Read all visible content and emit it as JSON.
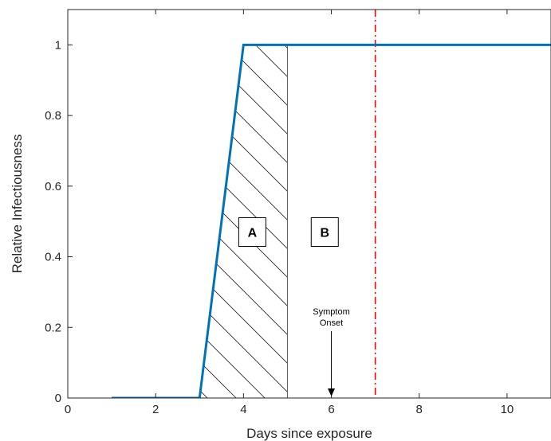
{
  "chart_data": {
    "type": "line",
    "title": "",
    "xlabel": "Days since exposure",
    "ylabel": "Relative Infectiousness",
    "xlim": [
      0,
      11
    ],
    "ylim": [
      0,
      1.1
    ],
    "xticks": [
      0,
      2,
      4,
      6,
      8,
      10
    ],
    "yticks": [
      0,
      0.2,
      0.4,
      0.6,
      0.8,
      1
    ],
    "grid": false,
    "series": [
      {
        "color": "#0072bd",
        "x": [
          1,
          3,
          4,
          11
        ],
        "y": [
          0,
          0,
          1,
          1
        ]
      }
    ],
    "vertical_lines": [
      {
        "x": 5,
        "style": "solid",
        "color": "#555555"
      },
      {
        "x": 7,
        "style": "dash-dot",
        "color": "#ff0000"
      }
    ],
    "hatched_region": {
      "label": "A",
      "x_from": 3,
      "x_to": 5
    },
    "region_labels": [
      {
        "text": "A",
        "x": 4.2,
        "y": 0.47
      },
      {
        "text": "B",
        "x": 5.85,
        "y": 0.47
      }
    ],
    "annotation": {
      "text_line1": "Symptom",
      "text_line2": "Onset",
      "x": 6,
      "arrow_to_y": 0
    }
  }
}
